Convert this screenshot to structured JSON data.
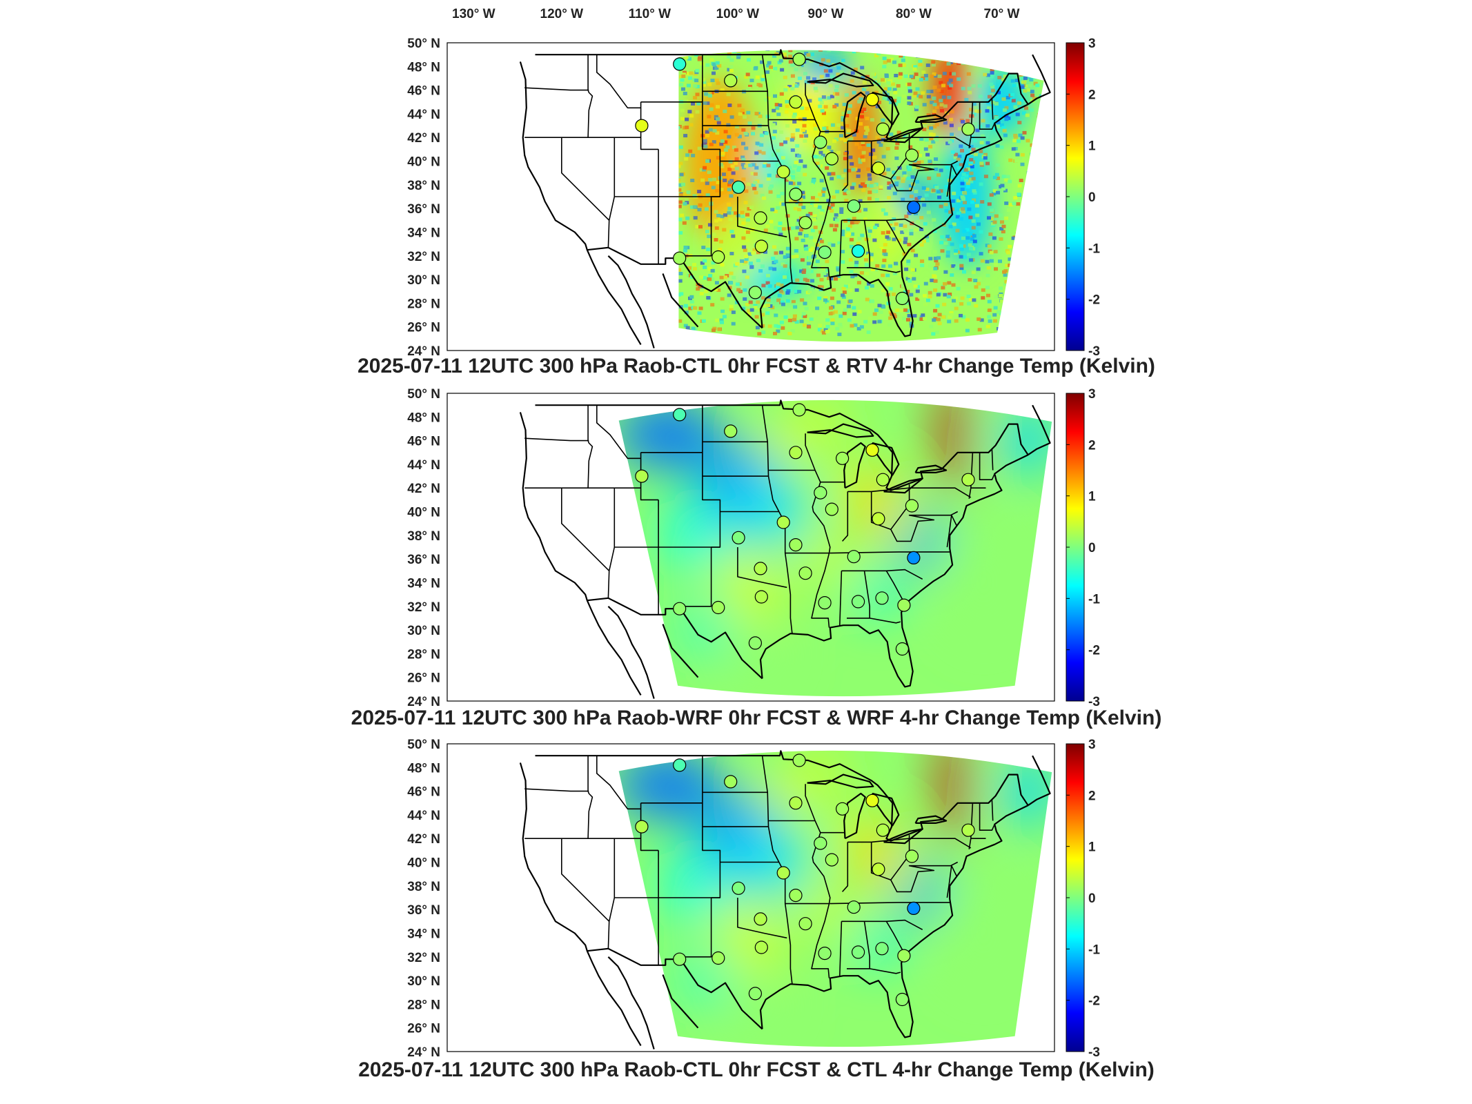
{
  "figure": {
    "top_lon_labels": [
      "130° W",
      "120° W",
      "110° W",
      "100° W",
      "90° W",
      "80° W",
      "70° W"
    ],
    "lat_labels": [
      "50° N",
      "48° N",
      "46° N",
      "44° N",
      "42° N",
      "40° N",
      "38° N",
      "36° N",
      "34° N",
      "32° N",
      "30° N",
      "28° N",
      "26° N",
      "24° N"
    ],
    "colorbar": {
      "ticks": [
        "3",
        "2",
        "1",
        "0",
        "-1",
        "-2",
        "-3"
      ],
      "min": -3,
      "max": 3,
      "units": "Kelvin"
    },
    "panels": [
      {
        "id": "rtv",
        "title": "2025-07-11 12UTC 300 hPa Raob-CTL 0hr FCST & RTV 4-hr Change Temp (Kelvin)",
        "field_style": "noisy",
        "warm_band": [
          {
            "lon": -75,
            "lat": 47,
            "value": 2.2
          }
        ],
        "raob_stations": [
          {
            "lon": -106.6,
            "lat": 48.2,
            "value": -0.5
          },
          {
            "lon": -100.8,
            "lat": 46.8,
            "value": 0.3
          },
          {
            "lon": -93.0,
            "lat": 48.6,
            "value": 0.2
          },
          {
            "lon": -110.9,
            "lat": 43.0,
            "value": 0.6
          },
          {
            "lon": -93.4,
            "lat": 45.0,
            "value": 0.4
          },
          {
            "lon": -84.7,
            "lat": 45.2,
            "value": 0.7
          },
          {
            "lon": -83.5,
            "lat": 42.7,
            "value": 0.3
          },
          {
            "lon": -73.8,
            "lat": 42.7,
            "value": 0.2
          },
          {
            "lon": -90.6,
            "lat": 41.6,
            "value": 0.1
          },
          {
            "lon": -89.3,
            "lat": 40.2,
            "value": 0.3
          },
          {
            "lon": -84.0,
            "lat": 39.4,
            "value": 0.5
          },
          {
            "lon": -80.2,
            "lat": 40.5,
            "value": 0.2
          },
          {
            "lon": -94.8,
            "lat": 39.1,
            "value": 0.4
          },
          {
            "lon": -99.9,
            "lat": 37.8,
            "value": -0.3
          },
          {
            "lon": -93.4,
            "lat": 37.2,
            "value": 0.1
          },
          {
            "lon": -86.8,
            "lat": 36.2,
            "value": 0.0
          },
          {
            "lon": -80.0,
            "lat": 36.1,
            "value": -1.6
          },
          {
            "lon": -97.4,
            "lat": 35.2,
            "value": 0.3
          },
          {
            "lon": -92.3,
            "lat": 34.8,
            "value": 0.2
          },
          {
            "lon": -97.3,
            "lat": 32.8,
            "value": 0.4
          },
          {
            "lon": -90.1,
            "lat": 32.3,
            "value": 0.0
          },
          {
            "lon": -86.3,
            "lat": 32.4,
            "value": -0.6
          },
          {
            "lon": -106.6,
            "lat": 31.8,
            "value": 0.2
          },
          {
            "lon": -102.2,
            "lat": 31.9,
            "value": 0.3
          },
          {
            "lon": -98.0,
            "lat": 28.9,
            "value": 0.1
          },
          {
            "lon": -81.3,
            "lat": 28.4,
            "value": 0.1
          }
        ]
      },
      {
        "id": "wrf",
        "title": "2025-07-11 12UTC 300 hPa Raob-WRF 0hr FCST & WRF 4-hr Change Temp (Kelvin)",
        "field_style": "smooth",
        "raob_stations": [
          {
            "lon": -106.6,
            "lat": 48.2,
            "value": -0.3
          },
          {
            "lon": -100.8,
            "lat": 46.8,
            "value": 0.2
          },
          {
            "lon": -93.0,
            "lat": 48.6,
            "value": 0.2
          },
          {
            "lon": -110.9,
            "lat": 43.0,
            "value": 0.3
          },
          {
            "lon": -93.4,
            "lat": 45.0,
            "value": 0.3
          },
          {
            "lon": -88.1,
            "lat": 44.5,
            "value": 0.2
          },
          {
            "lon": -84.7,
            "lat": 45.2,
            "value": 0.6
          },
          {
            "lon": -83.5,
            "lat": 42.7,
            "value": 0.3
          },
          {
            "lon": -73.8,
            "lat": 42.7,
            "value": 0.3
          },
          {
            "lon": -90.6,
            "lat": 41.6,
            "value": 0.1
          },
          {
            "lon": -89.3,
            "lat": 40.2,
            "value": 0.2
          },
          {
            "lon": -84.0,
            "lat": 39.4,
            "value": 0.4
          },
          {
            "lon": -80.2,
            "lat": 40.5,
            "value": 0.2
          },
          {
            "lon": -94.8,
            "lat": 39.1,
            "value": 0.3
          },
          {
            "lon": -99.9,
            "lat": 37.8,
            "value": 0.0
          },
          {
            "lon": -93.4,
            "lat": 37.2,
            "value": 0.2
          },
          {
            "lon": -86.8,
            "lat": 36.2,
            "value": 0.1
          },
          {
            "lon": -80.0,
            "lat": 36.1,
            "value": -1.4
          },
          {
            "lon": -97.4,
            "lat": 35.2,
            "value": 0.3
          },
          {
            "lon": -92.3,
            "lat": 34.8,
            "value": 0.2
          },
          {
            "lon": -97.3,
            "lat": 32.8,
            "value": 0.3
          },
          {
            "lon": -90.1,
            "lat": 32.3,
            "value": 0.1
          },
          {
            "lon": -86.3,
            "lat": 32.4,
            "value": 0.0
          },
          {
            "lon": -83.6,
            "lat": 32.7,
            "value": 0.0
          },
          {
            "lon": -81.1,
            "lat": 32.1,
            "value": 0.2
          },
          {
            "lon": -106.6,
            "lat": 31.8,
            "value": 0.1
          },
          {
            "lon": -102.2,
            "lat": 31.9,
            "value": 0.2
          },
          {
            "lon": -98.0,
            "lat": 28.9,
            "value": 0.1
          },
          {
            "lon": -81.3,
            "lat": 28.4,
            "value": 0.1
          }
        ]
      },
      {
        "id": "ctl",
        "title": "2025-07-11 12UTC 300 hPa Raob-CTL 0hr FCST & CTL 4-hr Change Temp (Kelvin)",
        "field_style": "smooth",
        "raob_stations": [
          {
            "lon": -106.6,
            "lat": 48.2,
            "value": -0.3
          },
          {
            "lon": -100.8,
            "lat": 46.8,
            "value": 0.2
          },
          {
            "lon": -93.0,
            "lat": 48.6,
            "value": 0.2
          },
          {
            "lon": -110.9,
            "lat": 43.0,
            "value": 0.3
          },
          {
            "lon": -93.4,
            "lat": 45.0,
            "value": 0.3
          },
          {
            "lon": -88.1,
            "lat": 44.5,
            "value": 0.2
          },
          {
            "lon": -84.7,
            "lat": 45.2,
            "value": 0.6
          },
          {
            "lon": -83.5,
            "lat": 42.7,
            "value": 0.3
          },
          {
            "lon": -73.8,
            "lat": 42.7,
            "value": 0.3
          },
          {
            "lon": -90.6,
            "lat": 41.6,
            "value": 0.1
          },
          {
            "lon": -89.3,
            "lat": 40.2,
            "value": 0.2
          },
          {
            "lon": -84.0,
            "lat": 39.4,
            "value": 0.4
          },
          {
            "lon": -80.2,
            "lat": 40.5,
            "value": 0.2
          },
          {
            "lon": -94.8,
            "lat": 39.1,
            "value": 0.3
          },
          {
            "lon": -99.9,
            "lat": 37.8,
            "value": 0.0
          },
          {
            "lon": -93.4,
            "lat": 37.2,
            "value": 0.2
          },
          {
            "lon": -86.8,
            "lat": 36.2,
            "value": 0.1
          },
          {
            "lon": -80.0,
            "lat": 36.1,
            "value": -1.4
          },
          {
            "lon": -97.4,
            "lat": 35.2,
            "value": 0.3
          },
          {
            "lon": -92.3,
            "lat": 34.8,
            "value": 0.2
          },
          {
            "lon": -97.3,
            "lat": 32.8,
            "value": 0.3
          },
          {
            "lon": -90.1,
            "lat": 32.3,
            "value": 0.1
          },
          {
            "lon": -86.3,
            "lat": 32.4,
            "value": 0.0
          },
          {
            "lon": -83.6,
            "lat": 32.7,
            "value": 0.0
          },
          {
            "lon": -81.1,
            "lat": 32.1,
            "value": 0.2
          },
          {
            "lon": -106.6,
            "lat": 31.8,
            "value": 0.1
          },
          {
            "lon": -102.2,
            "lat": 31.9,
            "value": 0.2
          },
          {
            "lon": -98.0,
            "lat": 28.9,
            "value": 0.1
          },
          {
            "lon": -81.3,
            "lat": 28.4,
            "value": 0.1
          }
        ]
      }
    ]
  },
  "chart_data": {
    "type": "heatmap",
    "map_extent": {
      "lon": [
        -133,
        -64
      ],
      "lat": [
        24,
        50
      ]
    },
    "colormap": "jet",
    "color_range": [
      -3,
      3
    ],
    "panels": [
      "rtv",
      "wrf",
      "ctl"
    ]
  }
}
